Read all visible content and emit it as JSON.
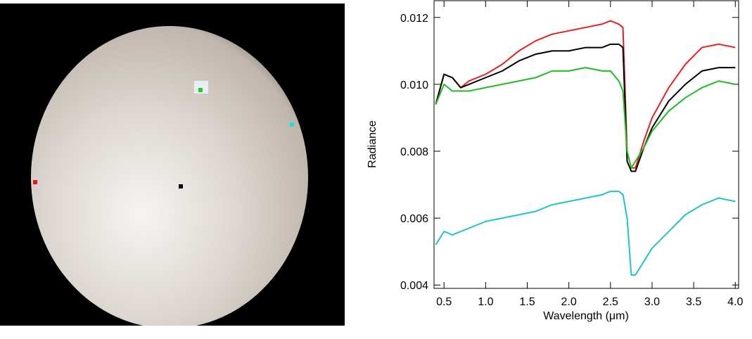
{
  "chart_data": {
    "type": "line",
    "x": [
      0.4,
      0.5,
      0.6,
      0.7,
      0.8,
      1.0,
      1.2,
      1.4,
      1.6,
      1.8,
      2.0,
      2.2,
      2.4,
      2.5,
      2.6,
      2.65,
      2.7,
      2.75,
      2.8,
      2.9,
      3.0,
      3.2,
      3.4,
      3.6,
      3.8,
      4.0
    ],
    "series": [
      {
        "color": "#e8201c",
        "values": [
          0.0094,
          0.0103,
          0.0102,
          0.0099,
          0.0101,
          0.0103,
          0.0106,
          0.011,
          0.0113,
          0.0115,
          0.0116,
          0.0117,
          0.0118,
          0.0119,
          0.0118,
          0.0117,
          0.008,
          0.0075,
          0.0075,
          0.0083,
          0.009,
          0.0099,
          0.0106,
          0.0111,
          0.0112,
          0.0111
        ]
      },
      {
        "color": "#000000",
        "values": [
          0.0094,
          0.0103,
          0.0102,
          0.0099,
          0.01,
          0.0102,
          0.0104,
          0.0107,
          0.0109,
          0.011,
          0.011,
          0.0111,
          0.0111,
          0.0112,
          0.0112,
          0.0111,
          0.0077,
          0.0074,
          0.0074,
          0.0081,
          0.0087,
          0.0095,
          0.01,
          0.0104,
          0.0105,
          0.0105
        ]
      },
      {
        "color": "#22bb22",
        "values": [
          0.0094,
          0.01,
          0.0098,
          0.0098,
          0.0098,
          0.0099,
          0.01,
          0.0101,
          0.0102,
          0.0104,
          0.0104,
          0.0105,
          0.0104,
          0.0104,
          0.0101,
          0.0098,
          0.008,
          0.0075,
          0.0077,
          0.0081,
          0.0086,
          0.0092,
          0.0096,
          0.0099,
          0.0101,
          0.01
        ]
      },
      {
        "color": "#1fc4c4",
        "values": [
          0.0052,
          0.0056,
          0.0055,
          0.0056,
          0.0057,
          0.0059,
          0.006,
          0.0061,
          0.0062,
          0.0064,
          0.0065,
          0.0066,
          0.0067,
          0.0068,
          0.0068,
          0.0067,
          0.006,
          0.0043,
          0.0043,
          0.0047,
          0.0051,
          0.0056,
          0.0061,
          0.0064,
          0.0066,
          0.0065
        ]
      }
    ],
    "xlabel": "Wavelength (μm)",
    "ylabel": "Radiance",
    "xlim": [
      0.38,
      4.04
    ],
    "ylim": [
      0.0039,
      0.0125
    ],
    "xticks": [
      0.5,
      {
        "value": 1,
        "label": "1.0"
      },
      1.5,
      {
        "value": 2,
        "label": "2.0"
      },
      2.5,
      {
        "value": 3,
        "label": "3.0"
      },
      3.5,
      {
        "value": 4,
        "label": "4.0"
      }
    ],
    "yticks": [
      0.004,
      0.006,
      0.008,
      {
        "value": 0.01,
        "label": "0.010"
      },
      0.012
    ]
  }
}
